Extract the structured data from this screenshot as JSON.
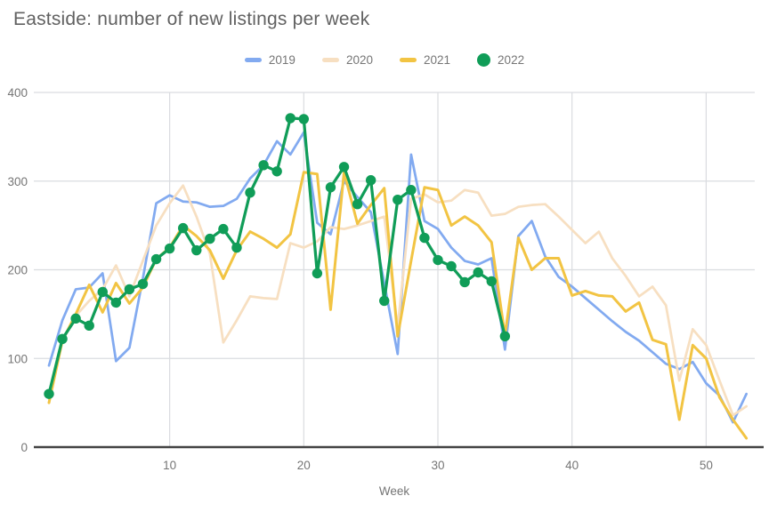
{
  "title": "Eastside: number of new listings per week",
  "legend": [
    {
      "label": "2019",
      "color": "#82aaf0",
      "shape": "line"
    },
    {
      "label": "2020",
      "color": "#f7dfc1",
      "shape": "line"
    },
    {
      "label": "2021",
      "color": "#f2c443",
      "shape": "line"
    },
    {
      "label": "2022",
      "color": "#109d58",
      "shape": "dot"
    }
  ],
  "colors": {
    "grid": "#dadce0",
    "axis_line": "#424242",
    "tick_label": "#757575",
    "axis_title": "#757575",
    "title": "#616161",
    "background": "#ffffff"
  },
  "chart_data": {
    "type": "line",
    "title": "Eastside: number of new listings per week",
    "xlabel": "Week",
    "ylabel": "",
    "xlim": [
      1,
      53
    ],
    "ylim": [
      0,
      400
    ],
    "x_ticks": [
      10,
      20,
      30,
      40,
      50
    ],
    "y_ticks": [
      0,
      100,
      200,
      300,
      400
    ],
    "grid": true,
    "legend_position": "top",
    "series": [
      {
        "name": "2019",
        "color": "#82aaf0",
        "line_width": 2.75,
        "show_points": false,
        "start_week": 1,
        "values": [
          92,
          143,
          178,
          180,
          196,
          97,
          112,
          190,
          275,
          284,
          277,
          276,
          271,
          272,
          280,
          303,
          318,
          345,
          330,
          355,
          253,
          240,
          300,
          282,
          265,
          185,
          105,
          330,
          255,
          246,
          225,
          210,
          206,
          213,
          110,
          238,
          255,
          215,
          192,
          181,
          168,
          155,
          142,
          130,
          120,
          107,
          94,
          88,
          96,
          72,
          58,
          28,
          60
        ]
      },
      {
        "name": "2020",
        "color": "#f7dfc1",
        "line_width": 2.75,
        "show_points": false,
        "start_week": 1,
        "values": [
          55,
          120,
          148,
          165,
          178,
          205,
          170,
          210,
          250,
          275,
          295,
          260,
          218,
          118,
          143,
          170,
          168,
          167,
          230,
          225,
          232,
          248,
          246,
          250,
          255,
          260,
          135,
          280,
          285,
          276,
          278,
          290,
          287,
          261,
          263,
          271,
          273,
          274,
          260,
          245,
          230,
          243,
          213,
          193,
          170,
          181,
          160,
          75,
          133,
          115,
          75,
          36,
          46
        ]
      },
      {
        "name": "2021",
        "color": "#f2c443",
        "line_width": 3,
        "show_points": false,
        "start_week": 1,
        "values": [
          50,
          120,
          150,
          183,
          152,
          185,
          162,
          180,
          212,
          225,
          250,
          238,
          222,
          190,
          222,
          243,
          235,
          225,
          240,
          310,
          308,
          155,
          310,
          252,
          273,
          292,
          125,
          210,
          293,
          290,
          250,
          260,
          250,
          231,
          126,
          236,
          200,
          213,
          213,
          171,
          176,
          171,
          170,
          153,
          163,
          121,
          116,
          31,
          115,
          100,
          56,
          31,
          10
        ]
      },
      {
        "name": "2022",
        "color": "#109d58",
        "line_width": 3.25,
        "show_points": true,
        "point_radius": 5.7,
        "start_week": 1,
        "values": [
          60,
          122,
          145,
          137,
          175,
          163,
          178,
          184,
          212,
          224,
          247,
          222,
          235,
          246,
          225,
          287,
          318,
          311,
          371,
          370,
          196,
          293,
          316,
          274,
          301,
          165,
          279,
          290,
          236,
          211,
          204,
          186,
          197,
          187,
          125
        ]
      }
    ]
  }
}
